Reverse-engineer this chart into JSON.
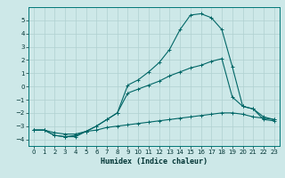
{
  "title": "",
  "xlabel": "Humidex (Indice chaleur)",
  "ylabel": "",
  "bg_color": "#cde8e8",
  "grid_color": "#b0d0d0",
  "line_color": "#006666",
  "xlim": [
    -0.5,
    23.5
  ],
  "ylim": [
    -4.5,
    6.0
  ],
  "xticks": [
    0,
    1,
    2,
    3,
    4,
    5,
    6,
    7,
    8,
    9,
    10,
    11,
    12,
    13,
    14,
    15,
    16,
    17,
    18,
    19,
    20,
    21,
    22,
    23
  ],
  "yticks": [
    -4,
    -3,
    -2,
    -1,
    0,
    1,
    2,
    3,
    4,
    5
  ],
  "line1_x": [
    0,
    1,
    2,
    3,
    4,
    5,
    6,
    7,
    8,
    9,
    10,
    11,
    12,
    13,
    14,
    15,
    16,
    17,
    18,
    19,
    20,
    21,
    22,
    23
  ],
  "line1_y": [
    -3.3,
    -3.3,
    -3.7,
    -3.8,
    -3.8,
    -3.4,
    -3.0,
    -2.5,
    -2.0,
    0.1,
    0.5,
    1.1,
    1.8,
    2.8,
    4.3,
    5.4,
    5.5,
    5.2,
    4.3,
    1.5,
    -1.5,
    -1.7,
    -2.5,
    -2.6
  ],
  "line2_x": [
    0,
    1,
    2,
    3,
    4,
    5,
    6,
    7,
    8,
    9,
    10,
    11,
    12,
    13,
    14,
    15,
    16,
    17,
    18,
    19,
    20,
    21,
    22,
    23
  ],
  "line2_y": [
    -3.3,
    -3.3,
    -3.7,
    -3.8,
    -3.7,
    -3.4,
    -3.0,
    -2.5,
    -2.0,
    -0.5,
    -0.2,
    0.1,
    0.4,
    0.8,
    1.1,
    1.4,
    1.6,
    1.9,
    2.1,
    -0.8,
    -1.5,
    -1.7,
    -2.3,
    -2.5
  ],
  "line3_x": [
    0,
    1,
    2,
    3,
    4,
    5,
    6,
    7,
    8,
    9,
    10,
    11,
    12,
    13,
    14,
    15,
    16,
    17,
    18,
    19,
    20,
    21,
    22,
    23
  ],
  "line3_y": [
    -3.3,
    -3.3,
    -3.5,
    -3.6,
    -3.6,
    -3.4,
    -3.3,
    -3.1,
    -3.0,
    -2.9,
    -2.8,
    -2.7,
    -2.6,
    -2.5,
    -2.4,
    -2.3,
    -2.2,
    -2.1,
    -2.0,
    -2.0,
    -2.1,
    -2.3,
    -2.4,
    -2.5
  ]
}
